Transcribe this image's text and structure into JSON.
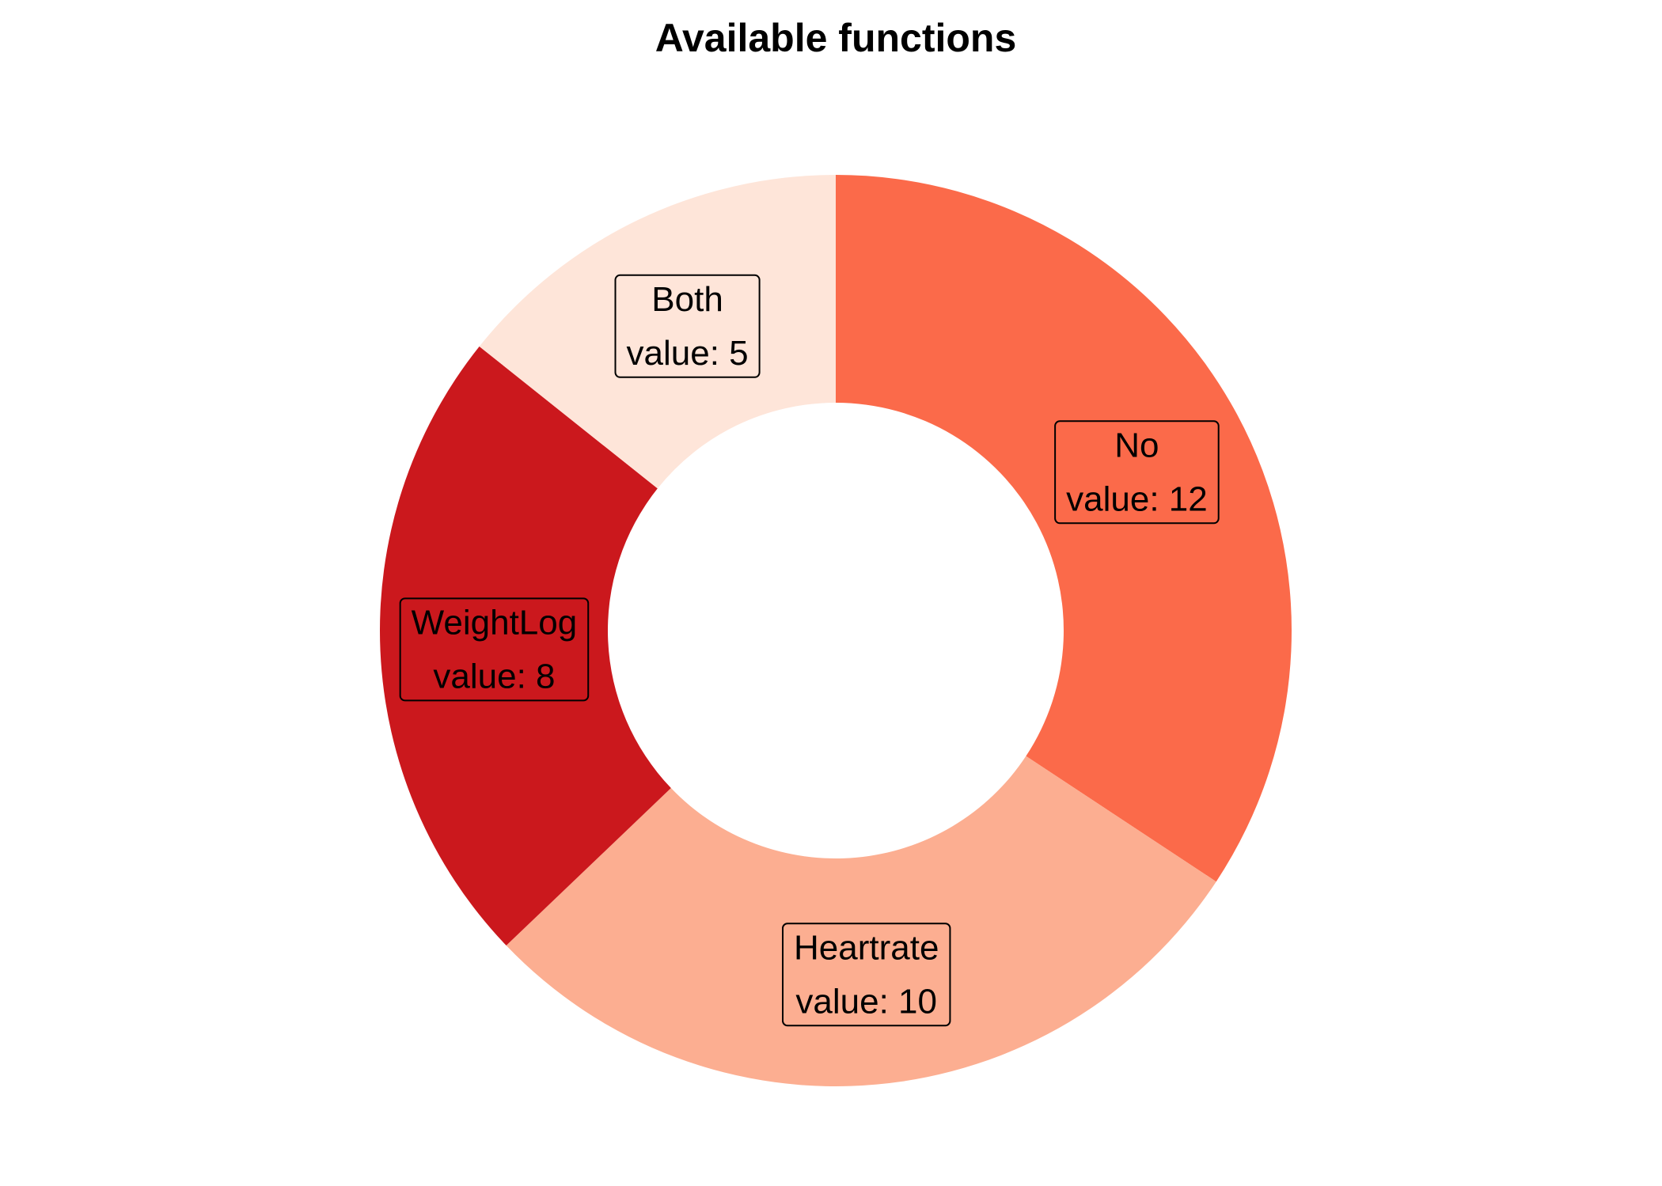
{
  "chart_data": {
    "type": "pie",
    "title": "Available functions",
    "donut": true,
    "start": "top, clockwise",
    "slices": [
      {
        "label": "No",
        "value": 12,
        "value_text": "value: 12",
        "color": "#FB6A4A"
      },
      {
        "label": "Heartrate",
        "value": 10,
        "value_text": "value: 10",
        "color": "#FCAE91"
      },
      {
        "label": "WeightLog",
        "value": 8,
        "value_text": "value: 8",
        "color": "#CB181D"
      },
      {
        "label": "Both",
        "value": 5,
        "value_text": "value: 5",
        "color": "#FEE5D9"
      }
    ]
  }
}
